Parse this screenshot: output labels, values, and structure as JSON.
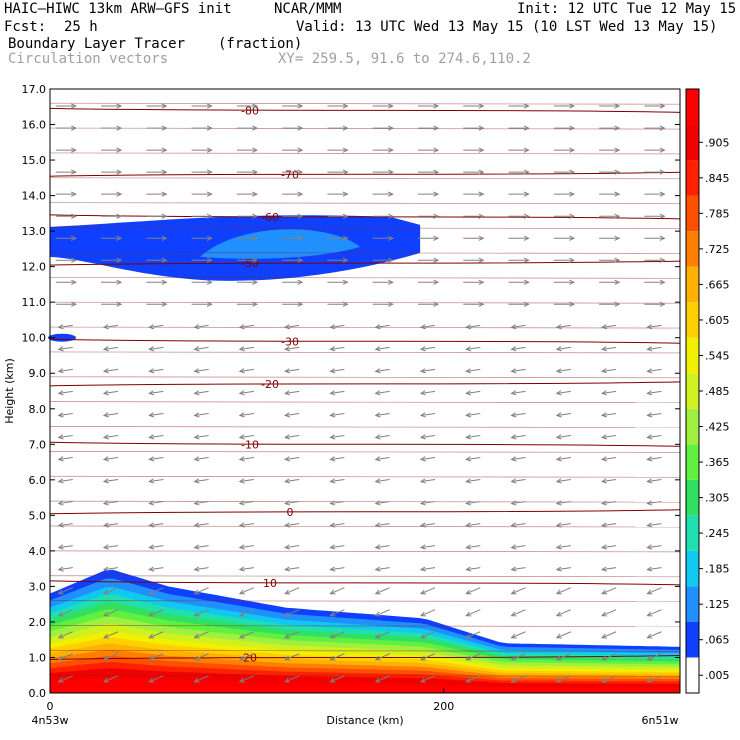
{
  "header": {
    "model": "HAIC–HIWC 13km ARW–GFS init",
    "org": "NCAR/MMM",
    "fcst_label": "Fcst:",
    "fcst_value": "25 h",
    "init": "Init: 12 UTC Tue 12 May 15",
    "valid": "Valid: 13 UTC Wed 13 May 15 (10 LST Wed 13 May 15)",
    "field": "Boundary Layer Tracer",
    "units": "(fraction)",
    "overlay": "Circulation vectors",
    "xy": "XY= 259.5, 91.6 to 274.6,110.2"
  },
  "chart_data": {
    "type": "heatmap",
    "xlabel": "Distance (km)",
    "ylabel": "Height (km)",
    "xlim": [
      0,
      320
    ],
    "ylim": [
      0,
      17
    ],
    "x_ticks": [
      "0",
      "200"
    ],
    "x_tick_values": [
      0,
      200
    ],
    "x_end_labels": [
      "4n53w",
      "6n51w"
    ],
    "y_ticks": [
      "0.0",
      "1.0",
      "2.0",
      "3.0",
      "4.0",
      "5.0",
      "6.0",
      "7.0",
      "8.0",
      "9.0",
      "10.0",
      "11.0",
      "12.0",
      "13.0",
      "14.0",
      "15.0",
      "16.0",
      "17.0"
    ],
    "colorbar": {
      "labels": [
        ".005",
        ".065",
        ".125",
        ".185",
        ".245",
        ".305",
        ".365",
        ".425",
        ".485",
        ".545",
        ".605",
        ".665",
        ".725",
        ".785",
        ".845",
        ".905"
      ],
      "colors": [
        "#ffffff",
        "#1040ff",
        "#2090ff",
        "#10c8f0",
        "#20e0b0",
        "#30e060",
        "#60f040",
        "#a0f040",
        "#d0f020",
        "#f0f000",
        "#ffd000",
        "#ffb000",
        "#ff8000",
        "#ff5000",
        "#ff2000",
        "#f00000",
        "#ff0000"
      ]
    },
    "temperature_contours": [
      {
        "label": "20",
        "height_km": 1.0
      },
      {
        "label": "10",
        "height_km": 3.1
      },
      {
        "label": "0",
        "height_km": 5.1
      },
      {
        "label": "-10",
        "height_km": 7.0
      },
      {
        "label": "-20",
        "height_km": 8.7
      },
      {
        "label": "-30",
        "height_km": 9.9
      },
      {
        "label": "-50",
        "height_km": 12.1
      },
      {
        "label": "-60",
        "height_km": 13.4
      },
      {
        "label": "-70",
        "height_km": 14.6
      },
      {
        "label": "-80",
        "height_km": 16.4
      }
    ],
    "tracer_cloud_upper": {
      "x_range_km": [
        0,
        188
      ],
      "height_range_km": [
        11.6,
        13.4
      ]
    },
    "boundary_layer_top_km": [
      {
        "x": 0,
        "y": 2.8
      },
      {
        "x": 30,
        "y": 3.5
      },
      {
        "x": 60,
        "y": 3.0
      },
      {
        "x": 120,
        "y": 2.4
      },
      {
        "x": 190,
        "y": 2.1
      },
      {
        "x": 230,
        "y": 1.4
      },
      {
        "x": 320,
        "y": 1.3
      }
    ],
    "wind_regimes": [
      {
        "height_range_km": [
          10.5,
          17
        ],
        "direction": "east"
      },
      {
        "height_range_km": [
          3.0,
          10.5
        ],
        "direction": "west"
      },
      {
        "height_range_km": [
          0,
          3.0
        ],
        "direction": "southwest"
      }
    ]
  }
}
